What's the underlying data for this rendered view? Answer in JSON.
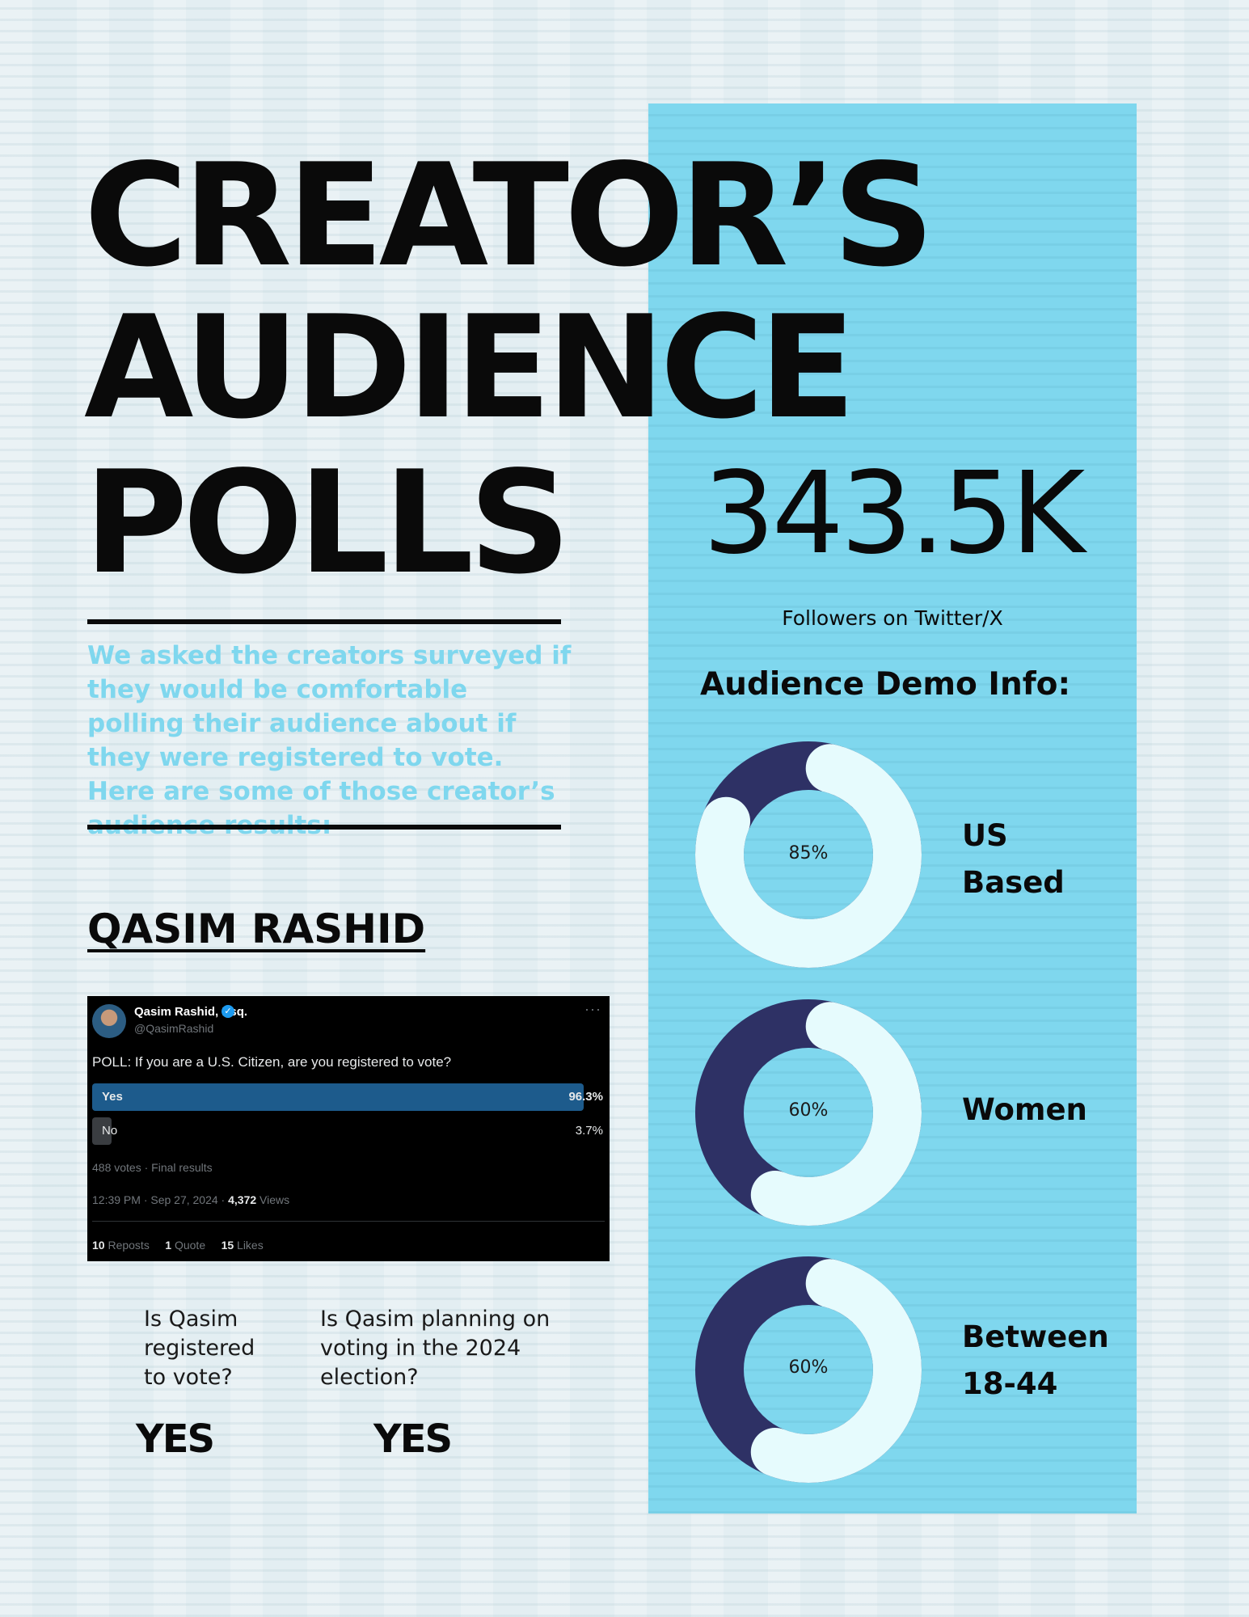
{
  "title": {
    "line1": "CREATOR’S",
    "line2": "AUDIENCE",
    "line3": "POLLS"
  },
  "intro_text": "We asked the creators surveyed if they would be comfortable polling their audience about if they were registered to vote. Here are some of those creator’s audience results:",
  "creator": {
    "name": "QASIM RASHID",
    "tweet": {
      "display_name": "Qasim Rashid, Esq.",
      "handle": "@QasimRashid",
      "more": "···",
      "question": "POLL: If you are a U.S. Citizen, are you registered to vote?",
      "options": [
        {
          "label": "Yes",
          "percent": "96.3%",
          "value": 96.3
        },
        {
          "label": "No",
          "percent": "3.7%",
          "value": 3.7
        }
      ],
      "votes": "488 votes · Final results",
      "time": "12:39 PM · Sep 27, 2024 · ",
      "views_count": "4,372",
      "views_label": " Views",
      "reposts_count": "10",
      "reposts_label": " Reposts",
      "quotes_count": "1",
      "quotes_label": " Quote",
      "likes_count": "15",
      "likes_label": " Likes"
    },
    "questions": [
      {
        "text": "Is Qasim registered to vote?",
        "answer": "YES"
      },
      {
        "text": "Is Qasim planning on voting in the 2024 election?",
        "answer": "YES"
      }
    ]
  },
  "followers": {
    "count": "343.5K",
    "label": "Followers on Twitter/X"
  },
  "demo": {
    "title": "Audience Demo Info:",
    "items": [
      {
        "percent_label": "85%",
        "value": 85,
        "label": "US\nBased"
      },
      {
        "percent_label": "60%",
        "value": 60,
        "label": "Women"
      },
      {
        "percent_label": "60%",
        "value": 60,
        "label": " Between\n18-44"
      }
    ]
  },
  "colors": {
    "accent_blue": "#7fd7ee",
    "donut_dark": "#2e3165",
    "donut_light": "#e6fbfd"
  }
}
